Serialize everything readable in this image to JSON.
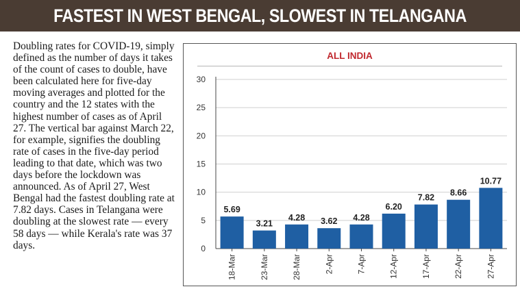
{
  "header": {
    "title": "FASTEST IN WEST BENGAL, SLOWEST IN TELANGANA"
  },
  "description": "Doubling rates for COVID-19, simply defined as the number of days it takes of the count of cases to double, have been calculated here for five-day moving averages and plotted for the country and the 12 states with the highest number of cases as of April 27. The vertical bar against March 22, for example, signifies the doubling rate of cases in the five-day period leading to that date, which was two days before the lockdown was announced. As of April 27, West Bengal had the fastest doubling rate at 7.82 days. Cases in Telangana were doubling at the slowest rate — every 58 days — while Kerala's rate was 37 days.",
  "colors": {
    "header_bg": "#4a3c33",
    "bar": "#1f5fa3",
    "chart_title": "#c0272d"
  },
  "chart_data": {
    "type": "bar",
    "title": "ALL INDIA",
    "categories": [
      "18-Mar",
      "23-Mar",
      "28-Mar",
      "2-Apr",
      "7-Apr",
      "12-Apr",
      "17-Apr",
      "22-Apr",
      "27-Apr"
    ],
    "values": [
      5.69,
      3.21,
      4.28,
      3.62,
      4.28,
      6.2,
      7.82,
      8.66,
      10.77
    ],
    "value_labels": [
      "5.69",
      "3.21",
      "4.28",
      "3.62",
      "4.28",
      "6.20",
      "7.82",
      "8.66",
      "10.77"
    ],
    "yticks": [
      0,
      5,
      10,
      15,
      20,
      25,
      30
    ],
    "ylim": [
      0,
      30
    ],
    "grid": true,
    "xlabel": "",
    "ylabel": ""
  }
}
